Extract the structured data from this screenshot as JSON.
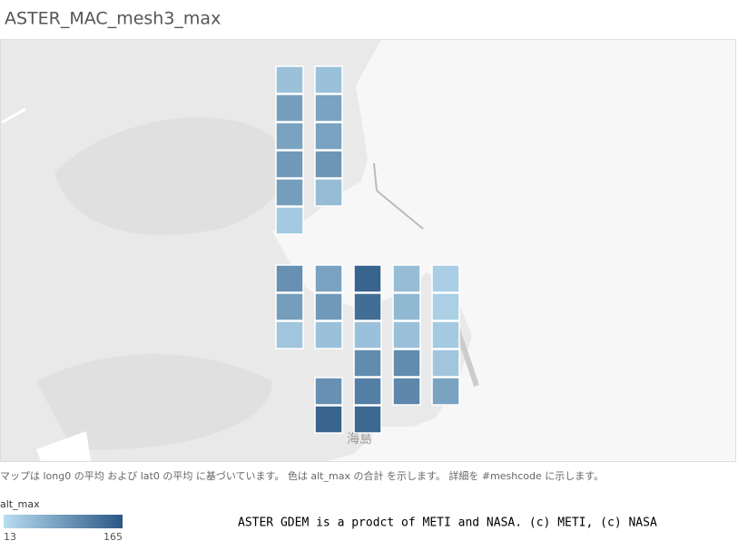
{
  "title": "ASTER_MAC_mesh3_max",
  "map_label": "海島",
  "caption": "マップは long0 の平均 および lat0 の平均 に基づいています。 色は alt_max の合計 を示します。 詳細を #meshcode に示します。",
  "legend": {
    "title": "alt_max",
    "min": 13,
    "max": 165,
    "color_low": "#b9ddf1",
    "color_high": "#2a5783"
  },
  "attribution": "ASTER GDEM is a prodct of METI and NASA. (c) METI, (c) NASA",
  "cells": [
    {
      "value": 45
    },
    {
      "value": 85
    },
    {
      "value": 80
    },
    {
      "value": 90
    },
    {
      "value": 85
    },
    {
      "value": 35
    },
    {
      "value": 45
    },
    {
      "value": 80
    },
    {
      "value": 80
    },
    {
      "value": 95
    },
    {
      "value": 50
    },
    {
      "value": 100
    },
    {
      "value": 85
    },
    {
      "value": 40
    },
    {
      "value": 80
    },
    {
      "value": 90
    },
    {
      "value": 45
    },
    {
      "value": 100
    },
    {
      "value": 150
    },
    {
      "value": 150
    },
    {
      "value": 140
    },
    {
      "value": 45
    },
    {
      "value": 105
    },
    {
      "value": 120
    },
    {
      "value": 145
    },
    {
      "value": 50
    },
    {
      "value": 55
    },
    {
      "value": 45
    },
    {
      "value": 105
    },
    {
      "value": 110
    },
    {
      "value": 30
    },
    {
      "value": 28
    },
    {
      "value": 35
    },
    {
      "value": 40
    },
    {
      "value": 80
    }
  ]
}
